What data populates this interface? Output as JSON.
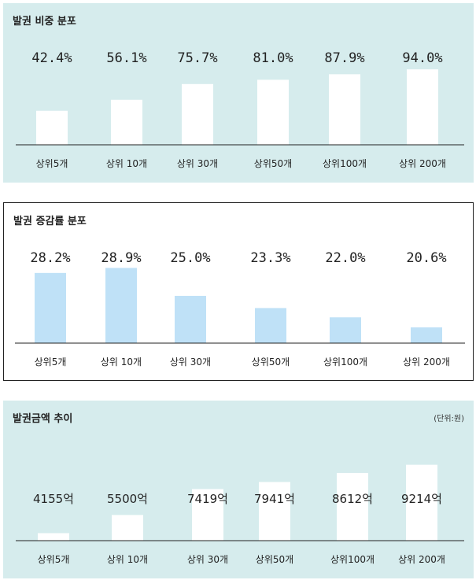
{
  "chart_data": [
    {
      "type": "bar",
      "title": "발권 비중 분포",
      "categories": [
        "상위5개",
        "상위 10개",
        "상위 30개",
        "상위50개",
        "상위100개",
        "상위 200개"
      ],
      "values": [
        42.4,
        56.1,
        75.7,
        81.0,
        87.9,
        94.0
      ],
      "labels": [
        "42.4%",
        "56.1%",
        "75.7%",
        "81.0%",
        "87.9%",
        "94.0%"
      ],
      "bar_color": "#ffffff",
      "ylim": [
        0,
        100
      ]
    },
    {
      "type": "bar",
      "title": "발권 증감률 분포",
      "categories": [
        "상위5개",
        "상위 10개",
        "상위 30개",
        "상위50개",
        "상위100개",
        "상위 200개"
      ],
      "values": [
        28.2,
        28.9,
        25.0,
        23.3,
        22.0,
        20.6
      ],
      "labels": [
        "28.2%",
        "28.9%",
        "25.0%",
        "23.3%",
        "22.0%",
        "20.6%"
      ],
      "bar_color": "#bfe1f7",
      "ylim": [
        18.4,
        29.5
      ]
    },
    {
      "type": "bar",
      "title": "발권금액 추이",
      "unit": "(단위:원)",
      "categories": [
        "상위5개",
        "상위 10개",
        "상위 30개",
        "상위50개",
        "상위100개",
        "상위 200개"
      ],
      "values": [
        4155,
        5500,
        7419,
        7941,
        8612,
        9214
      ],
      "labels": [
        "4155억",
        "5500억",
        "7419억",
        "7941억",
        "8612억",
        "9214억"
      ],
      "bar_color": "#ffffff",
      "ylim": [
        3600,
        9600
      ]
    }
  ]
}
